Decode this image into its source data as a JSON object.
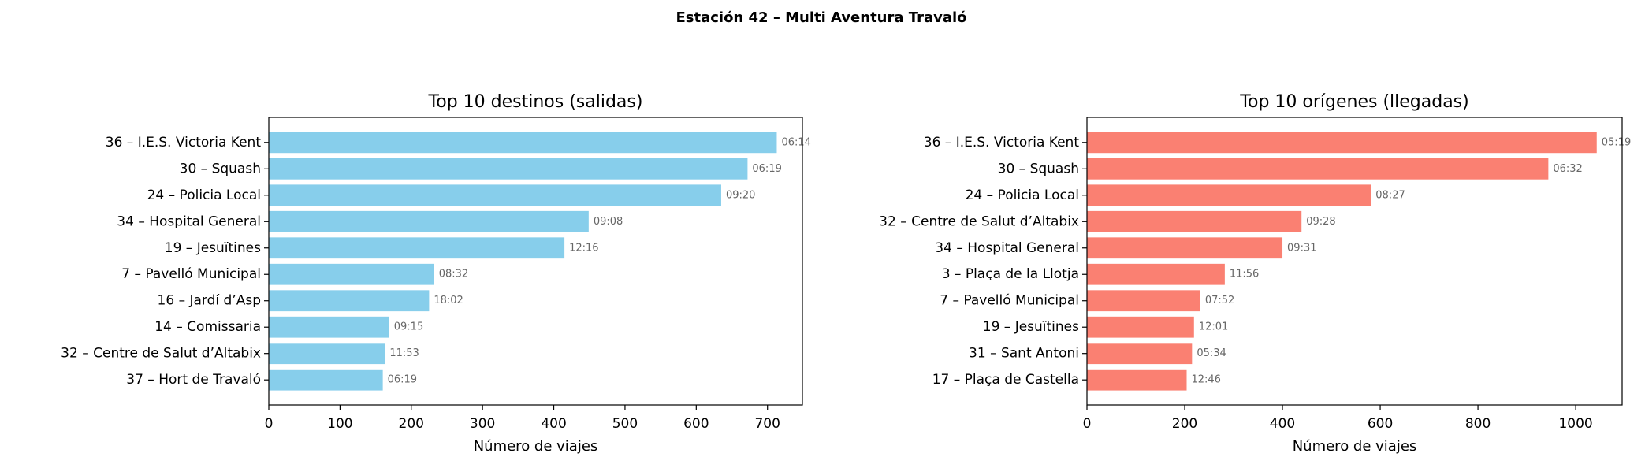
{
  "title": "Estación 42 – Multi Aventura Travaló",
  "chart_data": [
    {
      "type": "barh",
      "title": "Top 10 destinos (salidas)",
      "x_label": "Número de viajes",
      "categories": [
        "36 – I.E.S. Victoria Kent",
        "30 – Squash",
        "24 – Policia Local",
        "34 – Hospital General",
        "19 – Jesuïtines",
        "7 – Pavelló Municipal",
        "16 – Jardí d’Asp",
        "14 – Comissaria",
        "32 – Centre de Salut d’Altabix",
        "37 – Hort de Travaló"
      ],
      "values": [
        713,
        672,
        635,
        449,
        415,
        232,
        225,
        169,
        163,
        160
      ],
      "annotations": [
        "06:14",
        "06:19",
        "09:20",
        "09:08",
        "12:16",
        "08:32",
        "18:02",
        "09:15",
        "11:53",
        "06:19"
      ],
      "color": "#87ceeb",
      "xlim": [
        0,
        749
      ],
      "xticks": [
        0,
        100,
        200,
        300,
        400,
        500,
        600,
        700
      ]
    },
    {
      "type": "barh",
      "title": "Top 10 orígenes (llegadas)",
      "x_label": "Número de viajes",
      "categories": [
        "36 – I.E.S. Victoria Kent",
        "30 – Squash",
        "24 – Policia Local",
        "32 – Centre de Salut d’Altabix",
        "34 – Hospital General",
        "3 – Plaça de la Llotja",
        "7 – Pavelló Municipal",
        "19 – Jesuïtines",
        "31 – Sant Antoni",
        "17 – Plaça de Castella"
      ],
      "values": [
        1043,
        944,
        581,
        439,
        400,
        282,
        232,
        219,
        215,
        204
      ],
      "annotations": [
        "05:19",
        "06:32",
        "08:27",
        "09:28",
        "09:31",
        "11:56",
        "07:52",
        "12:01",
        "05:34",
        "12:46"
      ],
      "color": "#fa8072",
      "xlim": [
        0,
        1095
      ],
      "xticks": [
        0,
        200,
        400,
        600,
        800,
        1000
      ]
    }
  ]
}
